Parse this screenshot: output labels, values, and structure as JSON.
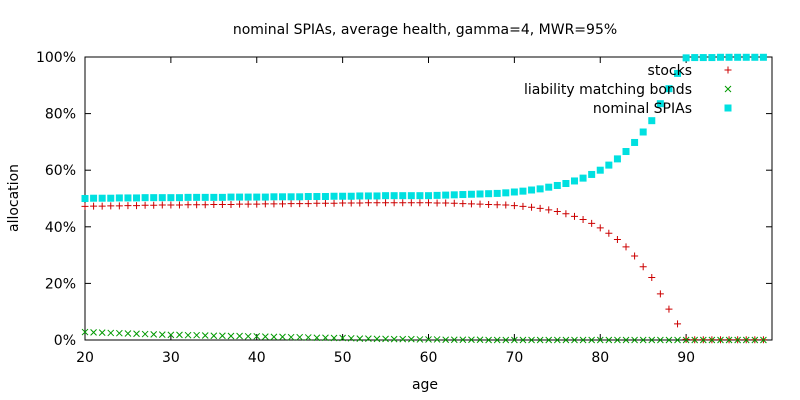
{
  "chart_data": {
    "type": "scatter",
    "title": "nominal SPIAs, average health, gamma=4, MWR=95%",
    "xlabel": "age",
    "ylabel": "allocation",
    "xlim": [
      20,
      100
    ],
    "ylim": [
      0,
      100
    ],
    "x_ticks": [
      20,
      30,
      40,
      50,
      60,
      70,
      80,
      90
    ],
    "y_ticks": [
      {
        "value": 0,
        "label": "0%"
      },
      {
        "value": 20,
        "label": "20%"
      },
      {
        "value": 40,
        "label": "40%"
      },
      {
        "value": 60,
        "label": "60%"
      },
      {
        "value": 80,
        "label": "80%"
      },
      {
        "value": 100,
        "label": "100%"
      }
    ],
    "grid": false,
    "legend_position": "top-right",
    "x": [
      20,
      21,
      22,
      23,
      24,
      25,
      26,
      27,
      28,
      29,
      30,
      31,
      32,
      33,
      34,
      35,
      36,
      37,
      38,
      39,
      40,
      41,
      42,
      43,
      44,
      45,
      46,
      47,
      48,
      49,
      50,
      51,
      52,
      53,
      54,
      55,
      56,
      57,
      58,
      59,
      60,
      61,
      62,
      63,
      64,
      65,
      66,
      67,
      68,
      69,
      70,
      71,
      72,
      73,
      74,
      75,
      76,
      77,
      78,
      79,
      80,
      81,
      82,
      83,
      84,
      85,
      86,
      87,
      88,
      89,
      90,
      91,
      92,
      93,
      94,
      95,
      96,
      97,
      98,
      99
    ],
    "series": [
      {
        "name": "stocks",
        "color": "#cc0000",
        "marker": "plus",
        "values": [
          47.2,
          47.3,
          47.3,
          47.4,
          47.4,
          47.5,
          47.5,
          47.6,
          47.6,
          47.7,
          47.7,
          47.7,
          47.8,
          47.8,
          47.8,
          47.9,
          47.9,
          47.9,
          48.0,
          48.0,
          48.0,
          48.1,
          48.1,
          48.1,
          48.2,
          48.2,
          48.2,
          48.3,
          48.3,
          48.3,
          48.4,
          48.4,
          48.4,
          48.5,
          48.5,
          48.5,
          48.5,
          48.5,
          48.5,
          48.5,
          48.5,
          48.4,
          48.4,
          48.3,
          48.2,
          48.1,
          48.0,
          47.9,
          47.8,
          47.7,
          47.5,
          47.2,
          46.9,
          46.5,
          46.0,
          45.4,
          44.6,
          43.7,
          42.6,
          41.2,
          39.6,
          37.7,
          35.5,
          32.9,
          29.7,
          25.9,
          22.1,
          16.3,
          10.9,
          5.7,
          0.2,
          0.1,
          0.1,
          0.1,
          0.1,
          0.1,
          0.1,
          0.1,
          0.1,
          0.1
        ]
      },
      {
        "name": "liability matching bonds",
        "color": "#009900",
        "marker": "cross",
        "values": [
          2.8,
          2.7,
          2.6,
          2.5,
          2.4,
          2.3,
          2.2,
          2.1,
          2.0,
          1.9,
          1.8,
          1.8,
          1.7,
          1.7,
          1.6,
          1.5,
          1.5,
          1.4,
          1.4,
          1.3,
          1.3,
          1.2,
          1.1,
          1.1,
          1.0,
          1.0,
          0.9,
          0.8,
          0.8,
          0.7,
          0.7,
          0.6,
          0.5,
          0.5,
          0.4,
          0.4,
          0.3,
          0.3,
          0.3,
          0.2,
          0.2,
          0.2,
          0.1,
          0.1,
          0.1,
          0.1,
          0.1,
          0.0,
          0.0,
          0.0,
          0.0,
          0.0,
          0.0,
          0.0,
          0.0,
          0.0,
          0.0,
          0.0,
          0.0,
          0.0,
          0.0,
          0.0,
          0.0,
          0.0,
          0.0,
          0.0,
          0.0,
          0.0,
          0.0,
          0.0,
          0.0,
          0.0,
          0.0,
          0.0,
          0.0,
          0.0,
          0.0,
          0.0,
          0.0,
          0.0
        ]
      },
      {
        "name": "nominal SPIAs",
        "color": "#00e0e0",
        "marker": "square",
        "values": [
          50.0,
          50.1,
          50.1,
          50.1,
          50.2,
          50.2,
          50.2,
          50.3,
          50.3,
          50.3,
          50.3,
          50.3,
          50.4,
          50.4,
          50.4,
          50.4,
          50.4,
          50.5,
          50.5,
          50.5,
          50.5,
          50.5,
          50.6,
          50.6,
          50.6,
          50.6,
          50.7,
          50.7,
          50.7,
          50.8,
          50.8,
          50.8,
          50.9,
          50.9,
          50.9,
          51.0,
          51.0,
          51.0,
          51.0,
          51.0,
          51.0,
          51.1,
          51.2,
          51.3,
          51.4,
          51.5,
          51.6,
          51.7,
          51.8,
          52.0,
          52.3,
          52.6,
          53.0,
          53.4,
          54.0,
          54.6,
          55.3,
          56.2,
          57.2,
          58.5,
          60.0,
          61.8,
          64.0,
          66.6,
          69.8,
          73.5,
          77.5,
          83.5,
          88.8,
          94.2,
          99.7,
          99.8,
          99.8,
          99.8,
          99.9,
          99.9,
          99.9,
          99.9,
          99.9,
          99.9
        ]
      }
    ]
  }
}
